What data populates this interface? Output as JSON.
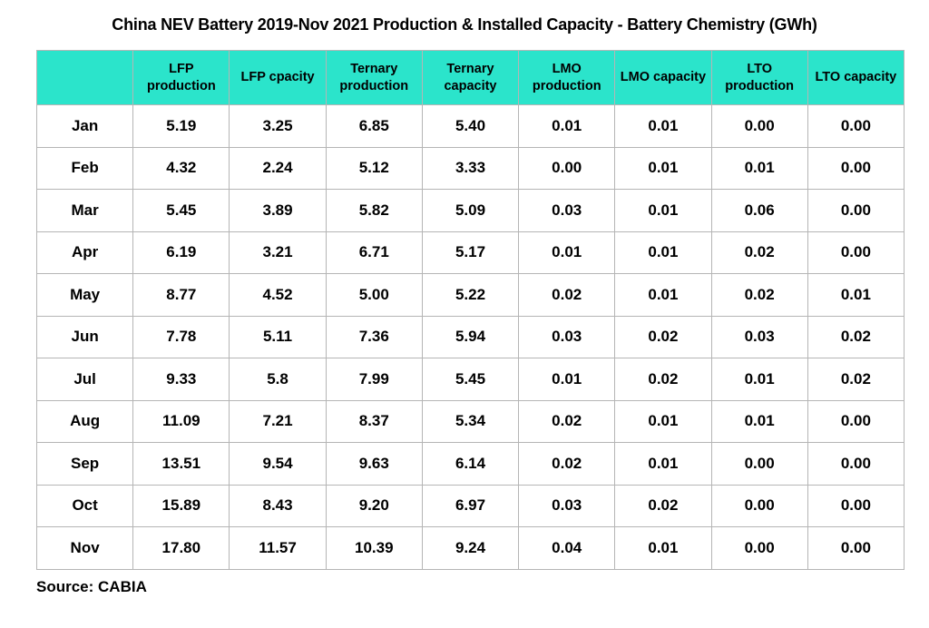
{
  "title": "China NEV Battery 2019-Nov 2021 Production & Installed Capacity - Battery Chemistry (GWh)",
  "source": "Source: CABIA",
  "colors": {
    "header_bg": "#2be4cb",
    "grid": "#b5b5b5",
    "text": "#000000"
  },
  "chart_data": {
    "type": "table",
    "title": "China NEV Battery 2019-Nov 2021 Production & Installed Capacity - Battery Chemistry (GWh)",
    "unit": "GWh",
    "columns": [
      "",
      "LFP production",
      "LFP cpacity",
      "Ternary production",
      "Ternary capacity",
      "LMO production",
      "LMO capacity",
      "LTO production",
      "LTO capacity"
    ],
    "rows": [
      [
        "Jan",
        "5.19",
        "3.25",
        "6.85",
        "5.40",
        "0.01",
        "0.01",
        "0.00",
        "0.00"
      ],
      [
        "Feb",
        "4.32",
        "2.24",
        "5.12",
        "3.33",
        "0.00",
        "0.01",
        "0.01",
        "0.00"
      ],
      [
        "Mar",
        "5.45",
        "3.89",
        "5.82",
        "5.09",
        "0.03",
        "0.01",
        "0.06",
        "0.00"
      ],
      [
        "Apr",
        "6.19",
        "3.21",
        "6.71",
        "5.17",
        "0.01",
        "0.01",
        "0.02",
        "0.00"
      ],
      [
        "May",
        "8.77",
        "4.52",
        "5.00",
        "5.22",
        "0.02",
        "0.01",
        "0.02",
        "0.01"
      ],
      [
        "Jun",
        "7.78",
        "5.11",
        "7.36",
        "5.94",
        "0.03",
        "0.02",
        "0.03",
        "0.02"
      ],
      [
        "Jul",
        "9.33",
        "5.8",
        "7.99",
        "5.45",
        "0.01",
        "0.02",
        "0.01",
        "0.02"
      ],
      [
        "Aug",
        "11.09",
        "7.21",
        "8.37",
        "5.34",
        "0.02",
        "0.01",
        "0.01",
        "0.00"
      ],
      [
        "Sep",
        "13.51",
        "9.54",
        "9.63",
        "6.14",
        "0.02",
        "0.01",
        "0.00",
        "0.00"
      ],
      [
        "Oct",
        "15.89",
        "8.43",
        "9.20",
        "6.97",
        "0.03",
        "0.02",
        "0.00",
        "0.00"
      ],
      [
        "Nov",
        "17.80",
        "11.57",
        "10.39",
        "9.24",
        "0.04",
        "0.01",
        "0.00",
        "0.00"
      ]
    ],
    "legend_position": "none",
    "grid": true
  }
}
